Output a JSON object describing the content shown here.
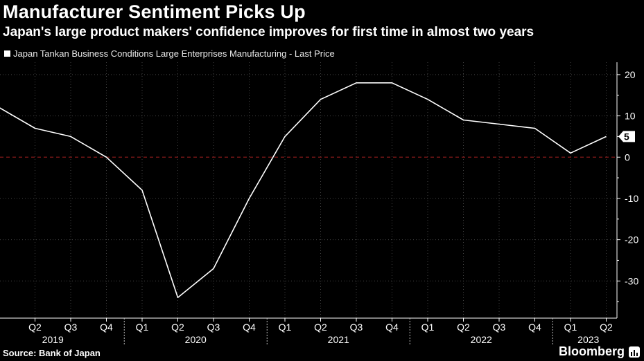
{
  "header": {
    "title": "Manufacturer Sentiment Picks Up",
    "subtitle": "Japan's large product makers' confidence improves for first time in almost two years"
  },
  "footer": {
    "source": "Source: Bank of Japan",
    "brand": "Bloomberg"
  },
  "colors": {
    "background": "#000000",
    "line": "#ffffff",
    "zero_line": "#8b1a1a",
    "grid": "#444444"
  },
  "chart_data": {
    "type": "line",
    "title": "Manufacturer Sentiment Picks Up",
    "subtitle": "Japan's large product makers' confidence improves for first time in almost two years",
    "series": [
      {
        "name": "Japan Tankan Business Conditions Large Enterprises Manufacturing - Last Price",
        "x": [
          "2019-Q1",
          "2019-Q2",
          "2019-Q3",
          "2019-Q4",
          "2020-Q1",
          "2020-Q2",
          "2020-Q3",
          "2020-Q4",
          "2021-Q1",
          "2021-Q2",
          "2021-Q3",
          "2021-Q4",
          "2022-Q1",
          "2022-Q2",
          "2022-Q3",
          "2022-Q4",
          "2023-Q1",
          "2023-Q2"
        ],
        "values": [
          12,
          7,
          5,
          0,
          -8,
          -34,
          -27,
          -10,
          5,
          14,
          18,
          18,
          14,
          9,
          8,
          7,
          1,
          5
        ]
      }
    ],
    "last_value_label": "5",
    "x_tick_labels": [
      "Q2",
      "Q3",
      "Q4",
      "Q1",
      "Q2",
      "Q3",
      "Q4",
      "Q1",
      "Q2",
      "Q3",
      "Q4",
      "Q1",
      "Q2",
      "Q3",
      "Q4",
      "Q1",
      "Q2"
    ],
    "x_year_labels": [
      "2019",
      "2020",
      "2021",
      "2022",
      "2023"
    ],
    "y_ticks": [
      20,
      10,
      0,
      -10,
      -20,
      -30
    ],
    "y_tick_labels": [
      "20",
      "10",
      "0",
      "-10",
      "-20",
      "-30"
    ],
    "ylim": [
      -39,
      23
    ],
    "y_axis_position": "right",
    "grid": true,
    "zero_line": "dashed",
    "legend": "top-left"
  }
}
